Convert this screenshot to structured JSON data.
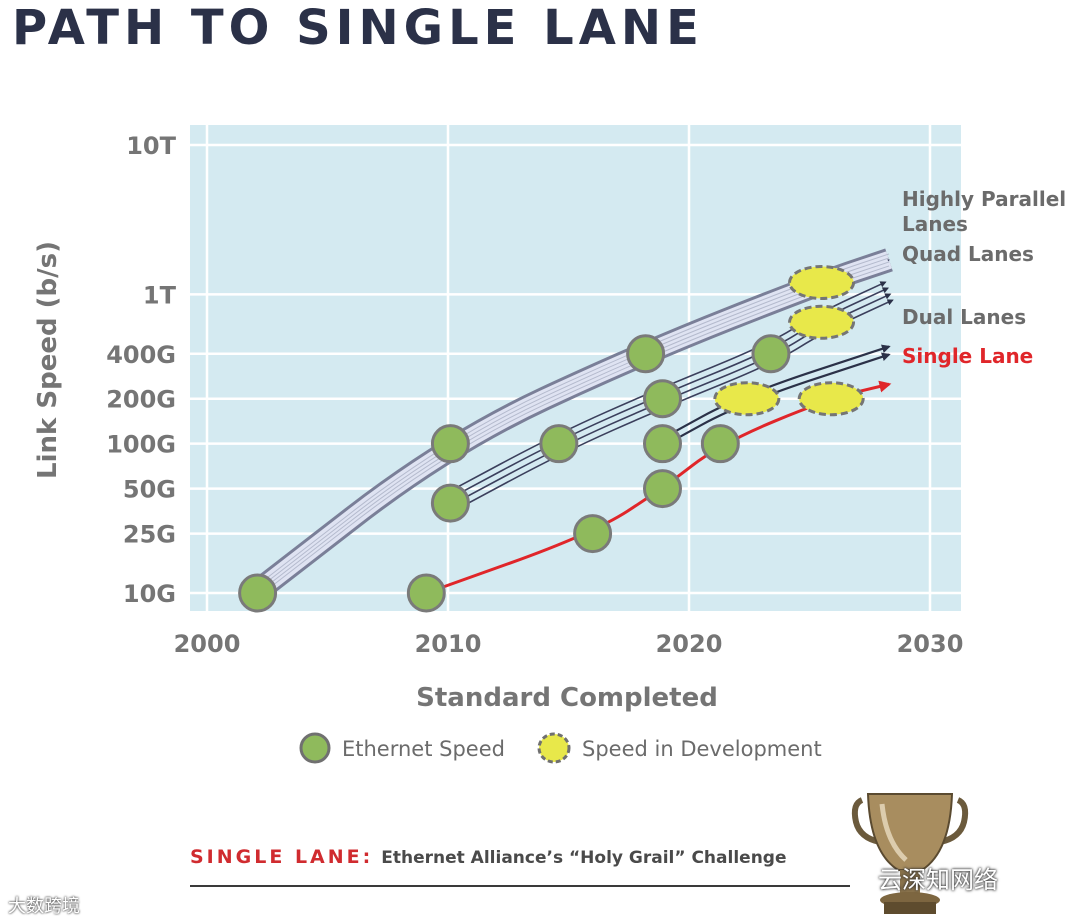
{
  "page_title": "PATH TO SINGLE LANE",
  "chart_data": {
    "type": "line",
    "title": "PATH TO SINGLE LANE",
    "xlabel": "Standard Completed",
    "ylabel": "Link Speed (b/s)",
    "xlim": [
      2000,
      2030
    ],
    "x_ticks": [
      2000,
      2010,
      2020,
      2030
    ],
    "y_scale": "log",
    "y_ticks": [
      {
        "label": "10T",
        "value": 10000
      },
      {
        "label": "1T",
        "value": 1000
      },
      {
        "label": "400G",
        "value": 400
      },
      {
        "label": "200G",
        "value": 200
      },
      {
        "label": "100G",
        "value": 100
      },
      {
        "label": "50G",
        "value": 50
      },
      {
        "label": "25G",
        "value": 25
      },
      {
        "label": "10G",
        "value": 10
      }
    ],
    "series": [
      {
        "name": "Highly Parallel Lanes",
        "color": "#3b3f5c",
        "points": [
          {
            "x": 2002,
            "y": 10
          },
          {
            "x": 2010,
            "y": 100
          },
          {
            "x": 2018,
            "y": 400
          },
          {
            "x": 2025.5,
            "y": 1200
          },
          {
            "x": 2028.3,
            "y": 1700
          }
        ]
      },
      {
        "name": "Quad Lanes",
        "color": "#3b3f5c",
        "points": [
          {
            "x": 2010,
            "y": 40
          },
          {
            "x": 2014.6,
            "y": 100
          },
          {
            "x": 2018.8,
            "y": 200
          },
          {
            "x": 2023.4,
            "y": 400
          },
          {
            "x": 2025.5,
            "y": 650
          },
          {
            "x": 2028.3,
            "y": 1050
          }
        ]
      },
      {
        "name": "Dual Lanes",
        "color": "#2b3148",
        "points": [
          {
            "x": 2018.8,
            "y": 100
          },
          {
            "x": 2022.2,
            "y": 200
          },
          {
            "x": 2028.3,
            "y": 420
          }
        ]
      },
      {
        "name": "Single Lane",
        "color": "#e0262a",
        "points": [
          {
            "x": 2009.1,
            "y": 10
          },
          {
            "x": 2016,
            "y": 25
          },
          {
            "x": 2018.9,
            "y": 50
          },
          {
            "x": 2021.3,
            "y": 100
          },
          {
            "x": 2025.8,
            "y": 200
          },
          {
            "x": 2028.3,
            "y": 250
          }
        ]
      }
    ],
    "markers": {
      "ethernet_speed": [
        {
          "x": 2002.1,
          "y": 10
        },
        {
          "x": 2009.1,
          "y": 10
        },
        {
          "x": 2010.1,
          "y": 100
        },
        {
          "x": 2010.1,
          "y": 40
        },
        {
          "x": 2014.6,
          "y": 100
        },
        {
          "x": 2016,
          "y": 25
        },
        {
          "x": 2018.2,
          "y": 400
        },
        {
          "x": 2018.9,
          "y": 200
        },
        {
          "x": 2018.9,
          "y": 100
        },
        {
          "x": 2018.9,
          "y": 50
        },
        {
          "x": 2021.3,
          "y": 100
        },
        {
          "x": 2023.4,
          "y": 400
        }
      ],
      "speed_in_development": [
        {
          "x": 2025.5,
          "y": 1200
        },
        {
          "x": 2025.5,
          "y": 650
        },
        {
          "x": 2022.4,
          "y": 200
        },
        {
          "x": 2025.9,
          "y": 200
        }
      ]
    },
    "annotations": [
      {
        "text": "Highly Parallel",
        "series": "Highly Parallel Lanes"
      },
      {
        "text": "Lanes",
        "series": "Highly Parallel Lanes"
      },
      {
        "text": "Quad Lanes",
        "series": "Quad Lanes"
      },
      {
        "text": "Dual Lanes",
        "series": "Dual Lanes"
      },
      {
        "text": "Single Lane",
        "series": "Single Lane"
      }
    ],
    "legend": [
      {
        "label": "Ethernet Speed",
        "marker": "green-circle"
      },
      {
        "label": "Speed in Development",
        "marker": "yellow-dashed-ellipse"
      }
    ],
    "legend_position": "bottom-center",
    "grid": true,
    "background_color": "#d4eaf1",
    "ethernet_color": "#8fba5c",
    "dev_color": "#e8e84a"
  },
  "footer": {
    "label": "SINGLE LANE:",
    "text": "Ethernet Alliance’s “Holy Grail” Challenge"
  },
  "watermarks": {
    "left": "大数跨境",
    "right": "云深知网络"
  }
}
